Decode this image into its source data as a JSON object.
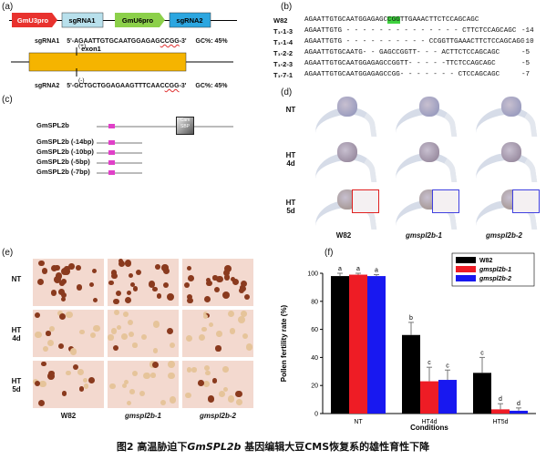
{
  "panels": {
    "a": {
      "label": "(a)",
      "construct": [
        "GmU3pro",
        "sgRNA1",
        "GmU6pro",
        "sgRNA2"
      ],
      "construct_colors": [
        "#e8322e",
        "#b8e0ec",
        "#8cd04a",
        "#2ca6e0"
      ],
      "exon_label": "exon1",
      "plus_mark": "(+)",
      "minus_mark": "(-)",
      "sgrna1": {
        "name": "sgRNA1",
        "seq_start": "5'-AGAATTGTGCAATGGAGAG",
        "seq_pam": "CCGG",
        "seq_end": "-3'",
        "gc": "GC%: 45%"
      },
      "sgrna2": {
        "name": "sgRNA2",
        "seq_start": "5'-GCTGCTGGAGAAGTTTCAAC",
        "seq_pam": "CGG",
        "seq_end": "-3'",
        "gc": "GC%: 45%"
      }
    },
    "b": {
      "label": "(b)",
      "rows": [
        {
          "name": "W82",
          "seq_pre": "AGAATTGTGCAATGGAGAGC",
          "seq_hl": "CGG",
          "seq_post": "TTGAAACTTCTCCAGCAGC",
          "del": ""
        },
        {
          "name": "T₁-1-3",
          "seq_pre": "AGAATTGTG - - - - - - - - - - - - - - CTTCTCCAGCAGC",
          "seq_hl": "",
          "seq_post": "",
          "del": "-14"
        },
        {
          "name": "T₁-1-4",
          "seq_pre": "AGAATTGTG - - - - - - - - - - CCGGTTGAAACTTCTCCAGCAGC",
          "seq_hl": "",
          "seq_post": "",
          "del": "-10"
        },
        {
          "name": "T₁-2-2",
          "seq_pre": "AGAATTGTGCAATG- - GAGCCGGTT- - - ACTTCTCCAGCAGC",
          "seq_hl": "",
          "seq_post": "",
          "del": "-5"
        },
        {
          "name": "T₁-2-3",
          "seq_pre": "AGAATTGTGCAATGGAGAGCCGGTT- - - - -TTCTCCAGCAGC",
          "seq_hl": "",
          "seq_post": "",
          "del": "-5"
        },
        {
          "name": "T₁-7-1",
          "seq_pre": "AGAATTGTGCAATGGAGAGCCGG- - - - - - - CTCCAGCAGC",
          "seq_hl": "",
          "seq_post": "",
          "del": "-7"
        }
      ],
      "highlight_color": "#3fd23f"
    },
    "c": {
      "label": "(c)",
      "rows": [
        "GmSPL2b",
        "GmSPL2b (-14bp)",
        "GmSPL2b (-10bp)",
        "GmSPL2b (-5bp)",
        "GmSPL2b (-7bp)"
      ],
      "domain_label": "SBP",
      "domain_small": "Cam",
      "accent": "#e040c8"
    },
    "d": {
      "label": "(d)",
      "rows": [
        "NT",
        "HT\n4d",
        "HT\n5d"
      ],
      "cols": [
        "W82",
        "gmspl2b-1",
        "gmspl2b-2"
      ]
    },
    "e": {
      "label": "(e)",
      "rows": [
        "NT",
        "HT\n4d",
        "HT\n5d"
      ],
      "cols": [
        "W82",
        "gmspl2b-1",
        "gmspl2b-2"
      ]
    },
    "f": {
      "label": "(f)"
    }
  },
  "chart_data": {
    "type": "bar",
    "categories": [
      "NT",
      "HT4d",
      "HT5d"
    ],
    "series": [
      {
        "name": "W82",
        "values": [
          98,
          56,
          29
        ],
        "errors": [
          2,
          9,
          11
        ],
        "letters": [
          "a",
          "b",
          "c"
        ],
        "color": "#000000"
      },
      {
        "name": "gmspl2b-1",
        "values": [
          99,
          23,
          3
        ],
        "errors": [
          1,
          10,
          4
        ],
        "letters": [
          "a",
          "c",
          "d"
        ],
        "color": "#ee1c25"
      },
      {
        "name": "gmspl2b-2",
        "values": [
          98,
          24,
          2
        ],
        "errors": [
          1,
          7,
          2
        ],
        "letters": [
          "a",
          "c",
          "d"
        ],
        "color": "#1818f0"
      }
    ],
    "xlabel": "Conditions",
    "ylabel": "Pollen fertility rate (%)",
    "ylim": [
      0,
      100
    ],
    "yticks": [
      0,
      20,
      40,
      60,
      80,
      100
    ],
    "legend": "top-right"
  },
  "caption": {
    "prefix": "图2 高温胁迫下",
    "gene": "GmSPL2b",
    "suffix": " 基因编辑大豆CMS恢复系的雄性育性下降"
  }
}
